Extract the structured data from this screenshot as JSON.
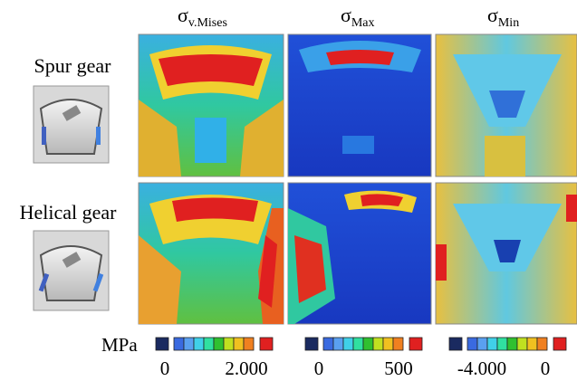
{
  "columns": [
    {
      "symbol": "σ",
      "subscript": "v.Mises"
    },
    {
      "symbol": "σ",
      "subscript": "Max"
    },
    {
      "symbol": "σ",
      "subscript": "Min"
    }
  ],
  "rows": [
    {
      "label": "Spur gear"
    },
    {
      "label": "Helical gear"
    }
  ],
  "unit": "MPa",
  "scales": [
    {
      "min_label": "0",
      "max_label": "2.000"
    },
    {
      "min_label": "0",
      "max_label": "500"
    },
    {
      "min_label": "-4.000",
      "max_label": "0"
    }
  ]
}
